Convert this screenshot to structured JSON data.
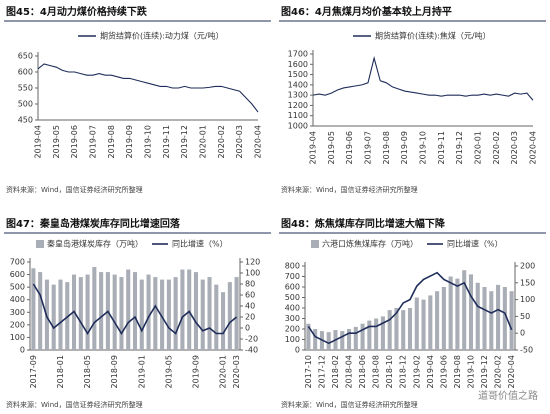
{
  "chart_data": [
    {
      "type": "line",
      "title": "图45：4月动力煤价格持续下跌",
      "source": "资料来源：Wind，国信证券经济研究所整理",
      "categories": [
        "2019-04",
        null,
        null,
        "2019-05",
        null,
        null,
        "2019-06",
        null,
        null,
        "2019-07",
        null,
        null,
        "2019-08",
        null,
        null,
        "2019-09",
        null,
        null,
        "2019-10",
        null,
        null,
        "2019-11",
        null,
        null,
        "2019-12",
        null,
        null,
        "2020-01",
        null,
        null,
        "2020-02",
        null,
        null,
        "2020-03",
        null,
        null,
        "2020-04"
      ],
      "series": [
        {
          "name": "期货结算价(连续):动力煤（元/吨）",
          "color": "#1f2d5a",
          "mark": "line",
          "values": [
            610,
            625,
            620,
            615,
            605,
            600,
            600,
            595,
            590,
            590,
            595,
            590,
            590,
            585,
            580,
            580,
            575,
            570,
            565,
            560,
            555,
            555,
            550,
            550,
            555,
            550,
            550,
            550,
            552,
            555,
            555,
            550,
            545,
            540,
            520,
            500,
            475
          ]
        }
      ],
      "ylim": [
        450,
        650
      ],
      "yticks": [
        450,
        500,
        550,
        600,
        650
      ]
    },
    {
      "type": "line",
      "title": "图46：4月焦煤月均价基本较上月持平",
      "source": "资料来源：Wind，国信证券经济研究所整理",
      "categories": [
        "2019-04",
        null,
        null,
        "2019-05",
        null,
        null,
        "2019-06",
        null,
        null,
        "2019-07",
        null,
        null,
        "2019-08",
        null,
        null,
        "2019-09",
        null,
        null,
        "2019-10",
        null,
        null,
        "2019-11",
        null,
        null,
        "2019-12",
        null,
        null,
        "2020-01",
        null,
        null,
        "2020-02",
        null,
        null,
        "2020-03",
        null,
        null,
        "2020-04"
      ],
      "series": [
        {
          "name": "期货结算价(连续):焦煤（元/吨）",
          "color": "#1f2d5a",
          "mark": "line",
          "values": [
            1300,
            1310,
            1300,
            1320,
            1350,
            1370,
            1380,
            1390,
            1400,
            1420,
            1660,
            1440,
            1420,
            1380,
            1360,
            1340,
            1330,
            1320,
            1310,
            1300,
            1300,
            1290,
            1300,
            1300,
            1300,
            1290,
            1300,
            1300,
            1310,
            1300,
            1310,
            1300,
            1290,
            1320,
            1310,
            1320,
            1250
          ]
        }
      ],
      "ylim": [
        1000,
        1700
      ],
      "yticks": [
        1000,
        1100,
        1200,
        1300,
        1400,
        1500,
        1600,
        1700
      ]
    },
    {
      "type": "combo",
      "title": "图47：秦皇岛港煤炭库存同比增速回落",
      "source": "资料来源：Wind，国信证券经济研究所整理",
      "categories": [
        "2017-09",
        null,
        null,
        null,
        "2018-01",
        null,
        null,
        null,
        "2018-05",
        null,
        null,
        null,
        "2018-09",
        null,
        null,
        null,
        "2019-01",
        null,
        null,
        null,
        "2019-05",
        null,
        null,
        null,
        "2019-09",
        null,
        null,
        null,
        "2020-01",
        null,
        "2020-03"
      ],
      "series": [
        {
          "name": "秦皇岛港煤炭库存（万吨）",
          "color": "#a9adb5",
          "mark": "bar",
          "values": [
            650,
            620,
            560,
            520,
            560,
            540,
            600,
            580,
            600,
            660,
            620,
            620,
            600,
            580,
            640,
            620,
            560,
            600,
            580,
            560,
            560,
            580,
            640,
            640,
            620,
            560,
            580,
            520,
            460,
            540,
            580
          ]
        },
        {
          "name": "同比增速（%）",
          "color": "#1f2d5a",
          "mark": "line",
          "axis": "y2",
          "values": [
            80,
            60,
            20,
            0,
            10,
            20,
            30,
            10,
            -10,
            10,
            20,
            30,
            10,
            -10,
            10,
            20,
            -5,
            20,
            40,
            20,
            0,
            -10,
            20,
            30,
            10,
            -5,
            0,
            -10,
            -10,
            10,
            20
          ]
        }
      ],
      "ylim": [
        0,
        700
      ],
      "yticks": [
        0,
        100,
        200,
        300,
        400,
        500,
        600,
        700
      ],
      "y2lim": [
        -40,
        120
      ],
      "y2ticks": [
        -40,
        -20,
        0,
        20,
        40,
        60,
        80,
        100,
        120
      ]
    },
    {
      "type": "combo",
      "title": "图48：炼焦煤库存同比增速大幅下降",
      "source": "资料来源：Wind，国信证券经济研究所整理",
      "categories": [
        "2017-10",
        null,
        "2017-12",
        null,
        "2018-02",
        null,
        "2018-04",
        null,
        "2018-06",
        null,
        "2018-08",
        null,
        "2018-10",
        null,
        "2018-12",
        null,
        "2019-02",
        null,
        "2019-04",
        null,
        "2019-06",
        null,
        "2019-08",
        null,
        "2019-10",
        null,
        "2019-12",
        null,
        "2020-02",
        null,
        "2020-04"
      ],
      "series": [
        {
          "name": "六港口炼焦煤库存（万吨）",
          "color": "#a9adb5",
          "mark": "bar",
          "values": [
            250,
            200,
            180,
            170,
            190,
            180,
            200,
            220,
            250,
            280,
            300,
            320,
            380,
            400,
            380,
            400,
            500,
            480,
            520,
            560,
            600,
            700,
            680,
            760,
            720,
            640,
            600,
            560,
            620,
            600,
            560
          ]
        },
        {
          "name": "同比增速（%）",
          "color": "#1f2d5a",
          "mark": "line",
          "axis": "y2",
          "values": [
            20,
            -10,
            -20,
            -30,
            -20,
            -10,
            0,
            0,
            10,
            20,
            20,
            30,
            40,
            60,
            90,
            100,
            140,
            160,
            170,
            180,
            160,
            150,
            140,
            150,
            110,
            80,
            70,
            60,
            70,
            60,
            10
          ]
        }
      ],
      "ylim": [
        0,
        800
      ],
      "yticks": [
        0,
        100,
        200,
        300,
        400,
        500,
        600,
        700,
        800
      ],
      "y2lim": [
        -50,
        200
      ],
      "y2ticks": [
        -50,
        0,
        50,
        100,
        150,
        200
      ]
    }
  ],
  "watermark": "道哥价值之路"
}
